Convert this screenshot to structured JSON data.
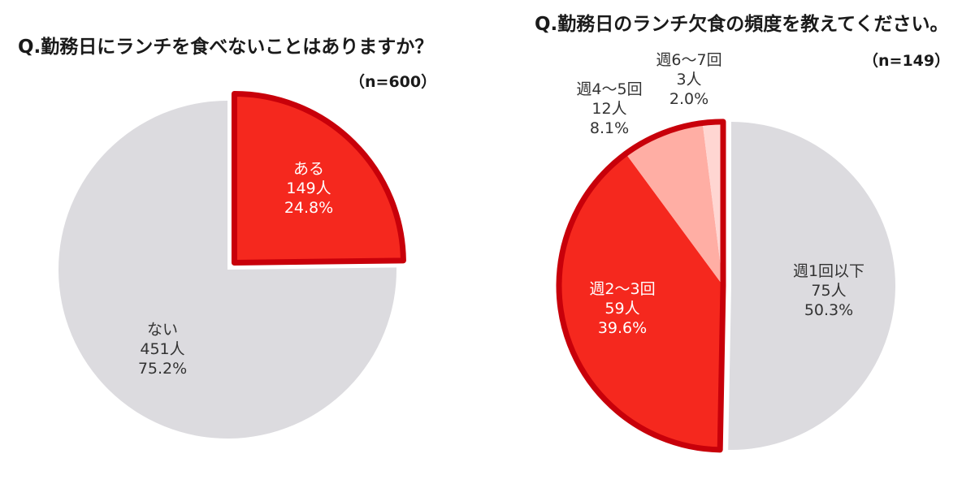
{
  "chart_data": [
    {
      "type": "pie",
      "title": "Q.勤務日にランチを食べないことはありますか？",
      "n_label": "（n=600）",
      "colors": {
        "highlight": "#f5281e",
        "base": "#dcdbdf",
        "border": "#c8000a"
      },
      "slices": [
        {
          "label": "ある",
          "count": "149人",
          "percent_label": "24.8%",
          "value": 24.8,
          "color": "#f5281e",
          "text_color": "#ffffff",
          "exploded": true
        },
        {
          "label": "ない",
          "count": "451人",
          "percent_label": "75.2%",
          "value": 75.2,
          "color": "#dcdbdf",
          "text_color": "#333333",
          "exploded": false
        }
      ]
    },
    {
      "type": "pie",
      "title": "Q.勤務日のランチ欠食の頻度を教えてください。",
      "n_label": "（n=149）",
      "colors": {
        "border": "#c8000a"
      },
      "slices": [
        {
          "label": "週1回以下",
          "count": "75人",
          "percent_label": "50.3%",
          "value": 50.3,
          "color": "#dcdbdf",
          "text_color": "#333333",
          "exploded": false
        },
        {
          "label": "週2～3回",
          "count": "59人",
          "percent_label": "39.6%",
          "value": 39.6,
          "color": "#f5281e",
          "text_color": "#ffffff",
          "exploded": true
        },
        {
          "label": "週4～5回",
          "count": "12人",
          "percent_label": "8.1%",
          "value": 8.1,
          "color": "#ffaea4",
          "text_color": "#333333",
          "exploded": true
        },
        {
          "label": "週6～7回",
          "count": "3人",
          "percent_label": "2.0%",
          "value": 2.0,
          "color": "#ffd6d2",
          "text_color": "#333333",
          "exploded": true
        }
      ]
    }
  ]
}
